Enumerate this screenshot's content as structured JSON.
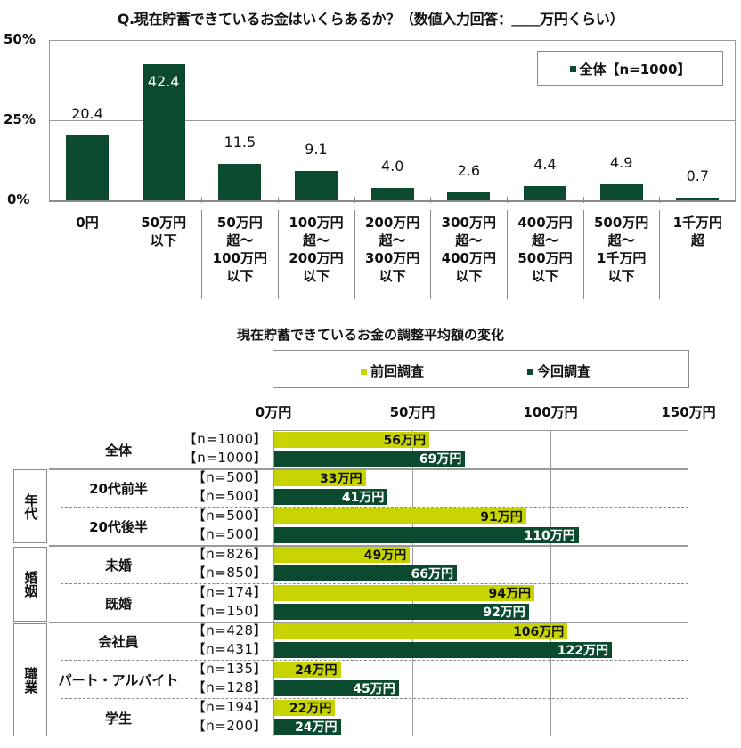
{
  "chart_data": [
    {
      "type": "bar",
      "title": "Q.現在貯蓄できているお金はいくらあるか？（数値入力回答：＿＿万円くらい）",
      "xlabel": "",
      "ylabel": "",
      "ylim": [
        0,
        50
      ],
      "yticks": [
        "0%",
        "25%",
        "50%"
      ],
      "grid": true,
      "legend_position": "top-right",
      "categories": [
        "0円",
        "50万円以下",
        "50万円超～100万円以下",
        "100万円超～200万円以下",
        "200万円超～300万円以下",
        "300万円超～400万円以下",
        "400万円超～500万円以下",
        "500万円超～1千万円以下",
        "1千万円超"
      ],
      "series": [
        {
          "name": "全体【n=1000】",
          "color": "#0b4a2f",
          "values": [
            20.4,
            42.4,
            11.5,
            9.1,
            4.0,
            2.6,
            4.4,
            4.9,
            0.7
          ]
        }
      ]
    },
    {
      "type": "bar",
      "orientation": "horizontal",
      "title": "現在貯蓄できているお金の調整平均額の変化",
      "xlabel": "",
      "ylabel": "",
      "xlim": [
        0,
        150
      ],
      "xticks": [
        "0万円",
        "50万円",
        "100万円",
        "150万円"
      ],
      "grid": true,
      "legend_position": "top",
      "categories": [
        "全体",
        "20代前半",
        "20代後半",
        "未婚",
        "既婚",
        "会社員",
        "パート・アルバイト",
        "学生"
      ],
      "groups": [
        {
          "name": "",
          "members": [
            "全体"
          ]
        },
        {
          "name": "年代",
          "members": [
            "20代前半",
            "20代後半"
          ]
        },
        {
          "name": "婚姻",
          "members": [
            "未婚",
            "既婚"
          ]
        },
        {
          "name": "職業",
          "members": [
            "会社員",
            "パート・アルバイト",
            "学生"
          ]
        }
      ],
      "series": [
        {
          "name": "前回調査",
          "color": "#c8d400",
          "values": [
            56,
            33,
            91,
            49,
            94,
            106,
            24,
            22
          ],
          "n": [
            1000,
            500,
            500,
            826,
            174,
            428,
            135,
            194
          ]
        },
        {
          "name": "今回調査",
          "color": "#0b4a2f",
          "values": [
            69,
            41,
            110,
            66,
            92,
            122,
            45,
            24
          ],
          "n": [
            1000,
            500,
            500,
            850,
            150,
            431,
            128,
            200
          ]
        }
      ]
    }
  ],
  "top": {
    "title": "Q.現在貯蓄できているお金はいくらあるか？（数値入力回答：＿＿万円くらい）",
    "yticks": {
      "t50": "50%",
      "t25": "25%",
      "t0": "0%"
    },
    "legend": "全体【n=1000】",
    "values": [
      "20.4",
      "42.4",
      "11.5",
      "9.1",
      "4.0",
      "2.6",
      "4.4",
      "4.9",
      "0.7"
    ],
    "categories": [
      [
        "0円"
      ],
      [
        "50万円",
        "以下"
      ],
      [
        "50万円",
        "超～",
        "100万円",
        "以下"
      ],
      [
        "100万円",
        "超～",
        "200万円",
        "以下"
      ],
      [
        "200万円",
        "超～",
        "300万円",
        "以下"
      ],
      [
        "300万円",
        "超～",
        "400万円",
        "以下"
      ],
      [
        "400万円",
        "超～",
        "500万円",
        "以下"
      ],
      [
        "500万円",
        "超～",
        "1千万円",
        "以下"
      ],
      [
        "1千万円",
        "超"
      ]
    ]
  },
  "bottom": {
    "title": "現在貯蓄できているお金の調整平均額の変化",
    "legend": {
      "prev": "前回調査",
      "curr": "今回調査"
    },
    "xticks": [
      "0万円",
      "50万円",
      "100万円",
      "150万円"
    ],
    "groups": [
      "年代",
      "婚姻",
      "職業"
    ],
    "rows": [
      {
        "label": "全体",
        "n_prev": "【n=1000】",
        "n_curr": "【n=1000】",
        "prev": "56万円",
        "curr": "69万円"
      },
      {
        "label": "20代前半",
        "n_prev": "【n=500】",
        "n_curr": "【n=500】",
        "prev": "33万円",
        "curr": "41万円"
      },
      {
        "label": "20代後半",
        "n_prev": "【n=500】",
        "n_curr": "【n=500】",
        "prev": "91万円",
        "curr": "110万円"
      },
      {
        "label": "未婚",
        "n_prev": "【n=826】",
        "n_curr": "【n=850】",
        "prev": "49万円",
        "curr": "66万円"
      },
      {
        "label": "既婚",
        "n_prev": "【n=174】",
        "n_curr": "【n=150】",
        "prev": "94万円",
        "curr": "92万円"
      },
      {
        "label": "会社員",
        "n_prev": "【n=428】",
        "n_curr": "【n=431】",
        "prev": "106万円",
        "curr": "122万円"
      },
      {
        "label": "パート・アルバイト",
        "n_prev": "【n=135】",
        "n_curr": "【n=128】",
        "prev": "24万円",
        "curr": "45万円"
      },
      {
        "label": "学生",
        "n_prev": "【n=194】",
        "n_curr": "【n=200】",
        "prev": "22万円",
        "curr": "24万円"
      }
    ]
  }
}
